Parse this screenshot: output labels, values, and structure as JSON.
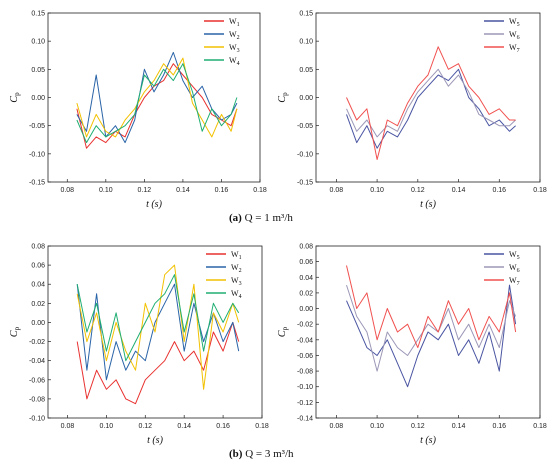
{
  "chart_data": [
    {
      "id": "a-left",
      "type": "line",
      "xlabel": "t (s)",
      "ylabel": "Cp",
      "xlim": [
        0.07,
        0.18
      ],
      "ylim": [
        -0.15,
        0.15
      ],
      "xticks": [
        "0.08",
        "0.10",
        "0.12",
        "0.14",
        "0.16",
        "0.18"
      ],
      "yticks": [
        "-0.15",
        "-0.10",
        "-0.05",
        "0.00",
        "0.05",
        "0.10",
        "0.15"
      ],
      "legend": "top-right",
      "series": [
        {
          "name": "W1",
          "color": "#e8312f",
          "x": [
            0.085,
            0.09,
            0.095,
            0.1,
            0.105,
            0.11,
            0.115,
            0.12,
            0.125,
            0.13,
            0.135,
            0.14,
            0.145,
            0.15,
            0.155,
            0.16,
            0.165,
            0.168
          ],
          "y": [
            -0.02,
            -0.09,
            -0.07,
            -0.08,
            -0.06,
            -0.07,
            -0.03,
            0.0,
            0.02,
            0.03,
            0.06,
            0.04,
            0.02,
            0.0,
            -0.03,
            -0.04,
            -0.05,
            -0.02
          ]
        },
        {
          "name": "W2",
          "color": "#2a64a8",
          "x": [
            0.085,
            0.09,
            0.095,
            0.1,
            0.105,
            0.11,
            0.115,
            0.12,
            0.125,
            0.13,
            0.135,
            0.14,
            0.145,
            0.15,
            0.155,
            0.16,
            0.165,
            0.168
          ],
          "y": [
            -0.03,
            -0.06,
            0.04,
            -0.07,
            -0.05,
            -0.08,
            -0.04,
            0.05,
            0.01,
            0.04,
            0.08,
            0.03,
            0.0,
            0.02,
            -0.02,
            -0.04,
            -0.03,
            -0.01
          ]
        },
        {
          "name": "W3",
          "color": "#f2c100",
          "x": [
            0.085,
            0.09,
            0.095,
            0.1,
            0.105,
            0.11,
            0.115,
            0.12,
            0.125,
            0.13,
            0.135,
            0.14,
            0.145,
            0.15,
            0.155,
            0.16,
            0.165,
            0.168
          ],
          "y": [
            -0.01,
            -0.07,
            -0.03,
            -0.06,
            -0.07,
            -0.04,
            -0.02,
            0.01,
            0.03,
            0.06,
            0.04,
            0.07,
            -0.01,
            -0.04,
            -0.07,
            -0.03,
            -0.06,
            -0.02
          ]
        },
        {
          "name": "W4",
          "color": "#1fae72",
          "x": [
            0.085,
            0.09,
            0.095,
            0.1,
            0.105,
            0.11,
            0.115,
            0.12,
            0.125,
            0.13,
            0.135,
            0.14,
            0.145,
            0.15,
            0.155,
            0.16,
            0.165,
            0.168
          ],
          "y": [
            -0.04,
            -0.08,
            -0.05,
            -0.07,
            -0.06,
            -0.05,
            -0.03,
            0.04,
            0.02,
            0.05,
            0.03,
            0.06,
            0.01,
            -0.06,
            -0.02,
            -0.05,
            -0.03,
            0.0
          ]
        }
      ]
    },
    {
      "id": "a-right",
      "type": "line",
      "xlabel": "t (s)",
      "ylabel": "Cp",
      "xlim": [
        0.07,
        0.18
      ],
      "ylim": [
        -0.15,
        0.15
      ],
      "xticks": [
        "0.08",
        "0.10",
        "0.12",
        "0.14",
        "0.16",
        "0.18"
      ],
      "yticks": [
        "-0.15",
        "-0.10",
        "-0.05",
        "0.00",
        "0.05",
        "0.10",
        "0.15"
      ],
      "legend": "top-right",
      "series": [
        {
          "name": "W5",
          "color": "#4a55a2",
          "x": [
            0.085,
            0.09,
            0.095,
            0.1,
            0.105,
            0.11,
            0.115,
            0.12,
            0.125,
            0.13,
            0.135,
            0.14,
            0.145,
            0.15,
            0.155,
            0.16,
            0.165,
            0.168
          ],
          "y": [
            -0.03,
            -0.08,
            -0.05,
            -0.09,
            -0.06,
            -0.07,
            -0.04,
            0.0,
            0.02,
            0.04,
            0.03,
            0.05,
            0.0,
            -0.02,
            -0.05,
            -0.04,
            -0.06,
            -0.05
          ]
        },
        {
          "name": "W6",
          "color": "#9b97b7",
          "x": [
            0.085,
            0.09,
            0.095,
            0.1,
            0.105,
            0.11,
            0.115,
            0.12,
            0.125,
            0.13,
            0.135,
            0.14,
            0.145,
            0.15,
            0.155,
            0.16,
            0.165,
            0.168
          ],
          "y": [
            -0.02,
            -0.06,
            -0.04,
            -0.07,
            -0.05,
            -0.06,
            -0.02,
            0.01,
            0.03,
            0.05,
            0.02,
            0.04,
            0.01,
            -0.03,
            -0.04,
            -0.05,
            -0.05,
            -0.04
          ]
        },
        {
          "name": "W7",
          "color": "#f0514f",
          "x": [
            0.085,
            0.09,
            0.095,
            0.1,
            0.105,
            0.11,
            0.115,
            0.12,
            0.125,
            0.13,
            0.135,
            0.14,
            0.145,
            0.15,
            0.155,
            0.16,
            0.165,
            0.168
          ],
          "y": [
            0.0,
            -0.04,
            -0.02,
            -0.11,
            -0.04,
            -0.05,
            -0.01,
            0.02,
            0.04,
            0.09,
            0.05,
            0.06,
            0.02,
            0.0,
            -0.03,
            -0.02,
            -0.04,
            -0.04
          ]
        }
      ]
    },
    {
      "id": "b-left",
      "type": "line",
      "xlabel": "t (s)",
      "ylabel": "Cp",
      "xlim": [
        0.07,
        0.18
      ],
      "ylim": [
        -0.1,
        0.08
      ],
      "xticks": [
        "0.08",
        "0.10",
        "0.12",
        "0.14",
        "0.16",
        "0.18"
      ],
      "yticks": [
        "-0.10",
        "-0.08",
        "-0.06",
        "-0.04",
        "-0.02",
        "0.00",
        "0.02",
        "0.04",
        "0.06",
        "0.08"
      ],
      "legend": "top-right",
      "series": [
        {
          "name": "W1",
          "color": "#e8312f",
          "x": [
            0.085,
            0.09,
            0.095,
            0.1,
            0.105,
            0.11,
            0.115,
            0.12,
            0.125,
            0.13,
            0.135,
            0.14,
            0.145,
            0.15,
            0.155,
            0.16,
            0.165,
            0.168
          ],
          "y": [
            -0.02,
            -0.08,
            -0.05,
            -0.07,
            -0.06,
            -0.08,
            -0.085,
            -0.06,
            -0.05,
            -0.04,
            -0.02,
            -0.04,
            -0.03,
            -0.05,
            -0.01,
            -0.03,
            0.0,
            -0.02
          ]
        },
        {
          "name": "W2",
          "color": "#2a64a8",
          "x": [
            0.085,
            0.09,
            0.095,
            0.1,
            0.105,
            0.11,
            0.115,
            0.12,
            0.125,
            0.13,
            0.135,
            0.14,
            0.145,
            0.15,
            0.155,
            0.16,
            0.165,
            0.168
          ],
          "y": [
            0.04,
            -0.05,
            0.03,
            -0.06,
            -0.02,
            -0.05,
            -0.03,
            -0.04,
            0.0,
            0.02,
            0.04,
            -0.03,
            0.02,
            -0.02,
            0.01,
            -0.02,
            0.0,
            -0.03
          ]
        },
        {
          "name": "W3",
          "color": "#f2c100",
          "x": [
            0.085,
            0.09,
            0.095,
            0.1,
            0.105,
            0.11,
            0.115,
            0.12,
            0.125,
            0.13,
            0.135,
            0.14,
            0.145,
            0.15,
            0.155,
            0.16,
            0.165,
            0.168
          ],
          "y": [
            0.03,
            -0.02,
            0.01,
            -0.04,
            0.0,
            -0.03,
            -0.05,
            0.02,
            -0.01,
            0.05,
            0.06,
            -0.02,
            0.04,
            -0.07,
            0.01,
            -0.01,
            0.02,
            0.0
          ]
        },
        {
          "name": "W4",
          "color": "#1fae72",
          "x": [
            0.085,
            0.09,
            0.095,
            0.1,
            0.105,
            0.11,
            0.115,
            0.12,
            0.125,
            0.13,
            0.135,
            0.14,
            0.145,
            0.15,
            0.155,
            0.16,
            0.165,
            0.168
          ],
          "y": [
            0.04,
            -0.01,
            0.02,
            -0.03,
            0.01,
            -0.04,
            -0.02,
            0.0,
            0.02,
            0.03,
            0.05,
            -0.01,
            0.03,
            -0.03,
            0.02,
            0.0,
            0.02,
            0.01
          ]
        }
      ]
    },
    {
      "id": "b-right",
      "type": "line",
      "xlabel": "t (s)",
      "ylabel": "Cp",
      "xlim": [
        0.07,
        0.18
      ],
      "ylim": [
        -0.14,
        0.08
      ],
      "xticks": [
        "0.08",
        "0.10",
        "0.12",
        "0.14",
        "0.16",
        "0.18"
      ],
      "yticks": [
        "-0.14",
        "-0.12",
        "-0.10",
        "-0.08",
        "-0.06",
        "-0.04",
        "-0.02",
        "0.00",
        "0.02",
        "0.04",
        "0.06",
        "0.08"
      ],
      "legend": "top-right",
      "series": [
        {
          "name": "W5",
          "color": "#4a55a2",
          "x": [
            0.085,
            0.09,
            0.095,
            0.1,
            0.105,
            0.11,
            0.115,
            0.12,
            0.125,
            0.13,
            0.135,
            0.14,
            0.145,
            0.15,
            0.155,
            0.16,
            0.165,
            0.168
          ],
          "y": [
            0.01,
            -0.02,
            -0.05,
            -0.06,
            -0.04,
            -0.07,
            -0.1,
            -0.06,
            -0.03,
            -0.04,
            -0.02,
            -0.06,
            -0.04,
            -0.07,
            -0.03,
            -0.08,
            0.03,
            -0.02
          ]
        },
        {
          "name": "W6",
          "color": "#9b97b7",
          "x": [
            0.085,
            0.09,
            0.095,
            0.1,
            0.105,
            0.11,
            0.115,
            0.12,
            0.125,
            0.13,
            0.135,
            0.14,
            0.145,
            0.15,
            0.155,
            0.16,
            0.165,
            0.168
          ],
          "y": [
            0.03,
            -0.01,
            -0.03,
            -0.08,
            -0.03,
            -0.05,
            -0.06,
            -0.04,
            -0.02,
            -0.03,
            0.0,
            -0.04,
            -0.02,
            -0.05,
            -0.02,
            -0.05,
            0.01,
            -0.01
          ]
        },
        {
          "name": "W7",
          "color": "#f0514f",
          "x": [
            0.085,
            0.09,
            0.095,
            0.1,
            0.105,
            0.11,
            0.115,
            0.12,
            0.125,
            0.13,
            0.135,
            0.14,
            0.145,
            0.15,
            0.155,
            0.16,
            0.165,
            0.168
          ],
          "y": [
            0.055,
            0.0,
            0.02,
            -0.04,
            0.0,
            -0.03,
            -0.02,
            -0.05,
            -0.01,
            -0.03,
            0.01,
            -0.02,
            0.0,
            -0.04,
            -0.01,
            -0.03,
            0.02,
            -0.03
          ]
        }
      ]
    }
  ],
  "captions": [
    {
      "label": "(a)",
      "text": "Q = 1 m³/h"
    },
    {
      "label": "(b)",
      "text": "Q = 3 m³/h"
    }
  ]
}
